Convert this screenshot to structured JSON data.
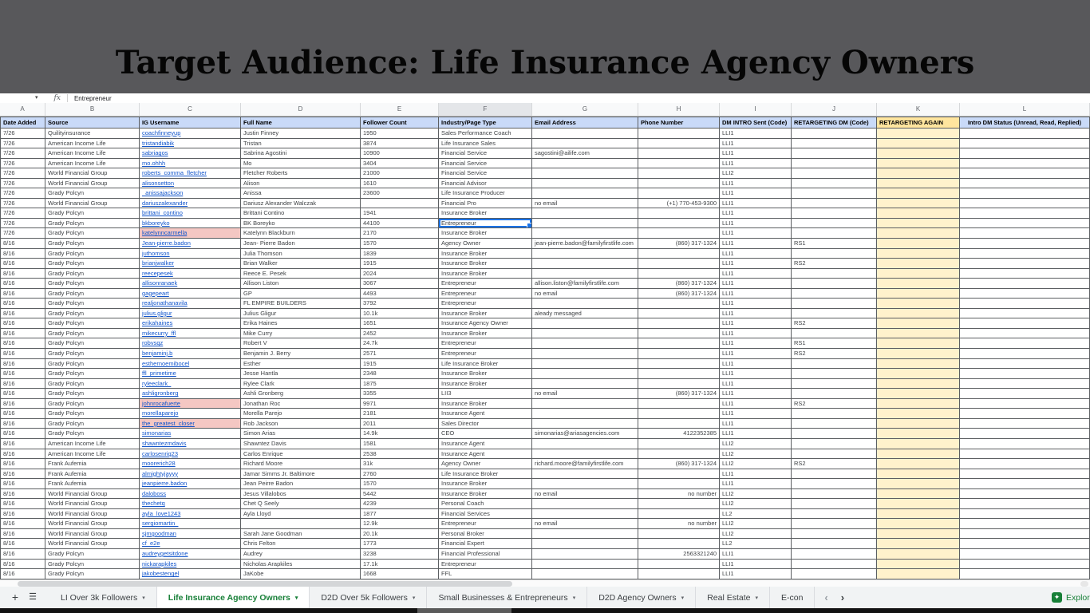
{
  "overlay": {
    "title": "Target Audience: Life Insurance Agency Owners"
  },
  "formula_bar": {
    "fx": "fx",
    "value": "Entrepreneur"
  },
  "colors": {
    "overlay_gray": "#58585b",
    "header_fill": "#c9daf8",
    "retargeting_header_fill": "#ffe59e",
    "retargeting_column_fill": "#fff2cc",
    "highlight_pink": "#f4c7c3",
    "link_blue": "#1155cc",
    "selection_blue": "#1a73e8",
    "active_tab_green": "#188038"
  },
  "sheet": {
    "column_letters": [
      "A",
      "B",
      "C",
      "D",
      "E",
      "F",
      "G",
      "H",
      "I",
      "J",
      "K",
      "L"
    ],
    "active_column": "F",
    "headers": [
      "Date Added",
      "Source",
      "IG Username",
      "Full Name",
      "Follower Count",
      "Industry/Page Type",
      "Email Address",
      "Phone Number",
      "DM INTRO Sent (Code)",
      "RETARGETING DM (Code)",
      "RETARGETING AGAIN",
      "Intro DM Status (Unread, Read, Replied)"
    ],
    "selected": {
      "row_index": 9,
      "column": "F",
      "value": "Entrepreneur"
    },
    "rows": [
      {
        "date": "7/26",
        "source": "Quilityinsurance",
        "user": "coachfinneyup",
        "name": "Justin Finney",
        "fol": "1950",
        "ind": "Sales Performance Coach",
        "email": "",
        "phone": "",
        "intro": "LLI1",
        "rt": ""
      },
      {
        "date": "7/26",
        "source": "American Income Life",
        "user": "tristandiabik",
        "name": "Tristan",
        "fol": "3874",
        "ind": "Life Insurance Sales",
        "email": "",
        "phone": "",
        "intro": "LLI1",
        "rt": ""
      },
      {
        "date": "7/26",
        "source": "American Income Life",
        "user": "sabriagos",
        "name": "Sabrina Agostini",
        "fol": "10900",
        "ind": "Financial Service",
        "email": "sagostini@ailife.com",
        "phone": "",
        "intro": "LLI1",
        "rt": ""
      },
      {
        "date": "7/26",
        "source": "American Income Life",
        "user": "mo.ohhh",
        "name": "Mo",
        "fol": "3404",
        "ind": "Financial Service",
        "email": "",
        "phone": "",
        "intro": "LLI1",
        "rt": ""
      },
      {
        "date": "7/26",
        "source": "World Financial Group",
        "user": "roberts_comma_fletcher",
        "name": "Fletcher Roberts",
        "fol": "21000",
        "ind": "Financial Service",
        "email": "",
        "phone": "",
        "intro": "LLI2",
        "rt": ""
      },
      {
        "date": "7/26",
        "source": "World Financial Group",
        "user": "alisonsetton",
        "name": "Alison",
        "fol": "1610",
        "ind": "Financial Advisor",
        "email": "",
        "phone": "",
        "intro": "LLI1",
        "rt": ""
      },
      {
        "date": "7/26",
        "source": "Grady Polcyn",
        "user": "_anissajackson",
        "name": "Anissa",
        "fol": "23600",
        "ind": "Life Insurance Producer",
        "email": "",
        "phone": "",
        "intro": "LLI1",
        "rt": ""
      },
      {
        "date": "7/26",
        "source": "World Financial Group",
        "user": "dariuszalexander",
        "name": "Dariusz Alexander Walczak",
        "fol": "",
        "ind": "Financial Pro",
        "email": "no email",
        "phone": "(+1) 770-453-9300",
        "intro": "LLI1",
        "rt": ""
      },
      {
        "date": "7/26",
        "source": "Grady Polcyn",
        "user": "brittani_contino",
        "name": "Brittani Contino",
        "fol": "1941",
        "ind": "Insurance Broker",
        "email": "",
        "phone": "",
        "intro": "LLI1",
        "rt": ""
      },
      {
        "date": "7/26",
        "source": "Grady Polcyn",
        "user": "bkboreyko",
        "name": "BK Boreyko",
        "fol": "44100",
        "ind": "Entrepreneur",
        "email": "",
        "phone": "",
        "intro": "LLI1",
        "rt": ""
      },
      {
        "date": "7/26",
        "source": "Grady Polcyn",
        "user": "katelynncarmella",
        "name": "Katelynn Blackburn",
        "fol": "2170",
        "ind": "Insurance Broker",
        "email": "",
        "phone": "",
        "intro": "LLI1",
        "rt": "",
        "pink": true
      },
      {
        "date": "8/16",
        "source": "Grady Polcyn",
        "user": "Jean-pierre.badon",
        "name": "Jean- Pierre Badon",
        "fol": "1570",
        "ind": "Agency Owner",
        "email": "jean-pierre.badon@familyfirstlife.com",
        "phone": "(860) 317-1324",
        "intro": "LLI1",
        "rt": "RS1"
      },
      {
        "date": "8/16",
        "source": "Grady Polcyn",
        "user": "juthomson",
        "name": "Julia Thomson",
        "fol": "1839",
        "ind": "Insurance Broker",
        "email": "",
        "phone": "",
        "intro": "LLI1",
        "rt": ""
      },
      {
        "date": "8/16",
        "source": "Grady Polcyn",
        "user": "brianjwalker",
        "name": "Brian Walker",
        "fol": "1915",
        "ind": "Insurance Broker",
        "email": "",
        "phone": "",
        "intro": "LLI1",
        "rt": "RS2"
      },
      {
        "date": "8/16",
        "source": "Grady Polcyn",
        "user": "reecepesek",
        "name": "Reece E. Pesek",
        "fol": "2024",
        "ind": "Insurance Broker",
        "email": "",
        "phone": "",
        "intro": "LLI1",
        "rt": ""
      },
      {
        "date": "8/16",
        "source": "Grady Polcyn",
        "user": "allisonranaek",
        "name": "Allison Liston",
        "fol": "3067",
        "ind": "Entrepreneur",
        "email": "allison.liston@familyfirstlife.com",
        "phone": "(860) 317-1324",
        "intro": "LLI1",
        "rt": ""
      },
      {
        "date": "8/16",
        "source": "Grady Polcyn",
        "user": "gagepeart",
        "name": "GP",
        "fol": "4493",
        "ind": "Entrepreneur",
        "email": "no email",
        "phone": "(860) 317-1324",
        "intro": "LLI1",
        "rt": ""
      },
      {
        "date": "8/16",
        "source": "Grady Polcyn",
        "user": "realjonathanavila",
        "name": "FL EMPIRE BUILDERS",
        "fol": "3792",
        "ind": "Entrepreneur",
        "email": "",
        "phone": "",
        "intro": "LLI1",
        "rt": ""
      },
      {
        "date": "8/16",
        "source": "Grady Polcyn",
        "user": "julius.gligur",
        "name": "Julius Gligur",
        "fol": "10.1k",
        "ind": "Insurance Broker",
        "email": "aleady messaged",
        "phone": "",
        "intro": "LLI1",
        "rt": ""
      },
      {
        "date": "8/16",
        "source": "Grady Polcyn",
        "user": "erikahaines",
        "name": "Erika Haines",
        "fol": "1651",
        "ind": "Insurance Agency Owner",
        "email": "",
        "phone": "",
        "intro": "LLI1",
        "rt": "RS2"
      },
      {
        "date": "8/16",
        "source": "Grady Polcyn",
        "user": "mikecurry_ffl",
        "name": "Mike Curry",
        "fol": "2452",
        "ind": "Insurance Broker",
        "email": "",
        "phone": "",
        "intro": "LLI1",
        "rt": ""
      },
      {
        "date": "8/16",
        "source": "Grady Polcyn",
        "user": "robvsqz",
        "name": "Robert V",
        "fol": "24.7k",
        "ind": "Entrepreneur",
        "email": "",
        "phone": "",
        "intro": "LLI1",
        "rt": "RS1"
      },
      {
        "date": "8/16",
        "source": "Grady Polcyn",
        "user": "benjaminj.b",
        "name": "Benjamin J. Berry",
        "fol": "2571",
        "ind": "Entrepreneur",
        "email": "",
        "phone": "",
        "intro": "LLI1",
        "rt": "RS2"
      },
      {
        "date": "8/16",
        "source": "Grady Polcyn",
        "user": "esthernoemibocel",
        "name": "Esther",
        "fol": "1915",
        "ind": "Life Insurance Broker",
        "email": "",
        "phone": "",
        "intro": "LLI1",
        "rt": ""
      },
      {
        "date": "8/16",
        "source": "Grady Polcyn",
        "user": "ffl_primetime",
        "name": "Jesse Hantla",
        "fol": "2348",
        "ind": "Insurance Broker",
        "email": "",
        "phone": "",
        "intro": "LLI1",
        "rt": ""
      },
      {
        "date": "8/16",
        "source": "Grady Polcyn",
        "user": "ryleeclark_",
        "name": "Rylee Clark",
        "fol": "1875",
        "ind": "Insurance Broker",
        "email": "",
        "phone": "",
        "intro": "LLI1",
        "rt": ""
      },
      {
        "date": "8/16",
        "source": "Grady Polcyn",
        "user": "ashligronberg",
        "name": "Ashli Gronberg",
        "fol": "3355",
        "ind": "LII3",
        "email": "no email",
        "phone": "(860) 317-1324",
        "intro": "LLI1",
        "rt": ""
      },
      {
        "date": "8/16",
        "source": "Grady Polcyn",
        "user": "johnrocafuerte",
        "name": "Jonathan Roc",
        "fol": "9971",
        "ind": "Insurance Broker",
        "email": "",
        "phone": "",
        "intro": "LLI1",
        "rt": "RS2",
        "pink": true
      },
      {
        "date": "8/16",
        "source": "Grady Polcyn",
        "user": "morellaparejo",
        "name": "Morella Parejo",
        "fol": "2181",
        "ind": "Insurance Agent",
        "email": "",
        "phone": "",
        "intro": "LLI1",
        "rt": ""
      },
      {
        "date": "8/16",
        "source": "Grady Polcyn",
        "user": "the_greatest_closer",
        "name": "Rob Jackson",
        "fol": "2011",
        "ind": "Sales Director",
        "email": "",
        "phone": "",
        "intro": "LLI1",
        "rt": "",
        "pink": true
      },
      {
        "date": "8/16",
        "source": "Grady Polcyn",
        "user": "simonarias",
        "name": "Simon Arias",
        "fol": "14.9k",
        "ind": "CEO",
        "email": "simonarias@ariasagencies.com",
        "phone": "4122352385",
        "intro": "LLI1",
        "rt": ""
      },
      {
        "date": "8/16",
        "source": "American Income Life",
        "user": "shawntezmdavis",
        "name": "Shawntez Davis",
        "fol": "1581",
        "ind": "Insurance Agent",
        "email": "",
        "phone": "",
        "intro": "LLI2",
        "rt": ""
      },
      {
        "date": "8/16",
        "source": "American Income Life",
        "user": "carlosenriq23",
        "name": "Carlos Enrique",
        "fol": "2538",
        "ind": "Insurance Agent",
        "email": "",
        "phone": "",
        "intro": "LLI2",
        "rt": ""
      },
      {
        "date": "8/16",
        "source": "Frank Aufemia",
        "user": "moorerich28",
        "name": "Richard Moore",
        "fol": "31k",
        "ind": "Agency Owner",
        "email": "richard.moore@familyfirstlife.com",
        "phone": "(860) 317-1324",
        "intro": "LLI2",
        "rt": "RS2"
      },
      {
        "date": "8/16",
        "source": "Frank Aufemia",
        "user": "almightyjayyy",
        "name": "Jamar Simms Jr. Baltimore",
        "fol": "2760",
        "ind": "Life Insurance Broker",
        "email": "",
        "phone": "",
        "intro": "LLI1",
        "rt": ""
      },
      {
        "date": "8/16",
        "source": "Frank Aufemia",
        "user": "jeanpierre.badon",
        "name": "Jean Peirre Badon",
        "fol": "1570",
        "ind": "Insurance Broker",
        "email": "",
        "phone": "",
        "intro": "LLI1",
        "rt": ""
      },
      {
        "date": "8/16",
        "source": "World Financial Group",
        "user": "daloboss",
        "name": "Jesus Villalobos",
        "fol": "5442",
        "ind": "Insurance Broker",
        "email": "no email",
        "phone": "no number",
        "intro": "LLI2",
        "rt": ""
      },
      {
        "date": "8/16",
        "source": "World Financial Group",
        "user": "thechetq",
        "name": "Chet Q Seely",
        "fol": "4239",
        "ind": "Personal Coach",
        "email": "",
        "phone": "",
        "intro": "LLI2",
        "rt": ""
      },
      {
        "date": "8/16",
        "source": "World Financial Group",
        "user": "ayla_love1243",
        "name": "Ayla Lloyd",
        "fol": "1877",
        "ind": "Financial Services",
        "email": "",
        "phone": "",
        "intro": "LL2",
        "rt": ""
      },
      {
        "date": "8/16",
        "source": "World Financial Group",
        "user": "sergiomartin_",
        "name": "",
        "fol": "12.9k",
        "ind": "Entrepreneur",
        "email": "no email",
        "phone": "no number",
        "intro": "LLI2",
        "rt": ""
      },
      {
        "date": "8/16",
        "source": "World Financial Group",
        "user": "sjmgoodman",
        "name": "Sarah Jane Goodman",
        "fol": "20.1k",
        "ind": "Personal Broker",
        "email": "",
        "phone": "",
        "intro": "LLI2",
        "rt": ""
      },
      {
        "date": "8/16",
        "source": "World Financial Group",
        "user": "cf_e2e",
        "name": "Chris Felton",
        "fol": "1773",
        "ind": "Financial Expert",
        "email": "",
        "phone": "",
        "intro": "LL2",
        "rt": ""
      },
      {
        "date": "8/16",
        "source": "Grady Polcyn",
        "user": "audreygetsitdone",
        "name": "Audrey",
        "fol": "3238",
        "ind": "Financial Professional",
        "email": "",
        "phone": "2563321240",
        "intro": "LLI1",
        "rt": ""
      },
      {
        "date": "8/16",
        "source": "Grady Polcyn",
        "user": "nickarapkiles",
        "name": "Nicholas Arapkiles",
        "fol": "17.1k",
        "ind": "Entrepreneur",
        "email": "",
        "phone": "",
        "intro": "LLI1",
        "rt": ""
      },
      {
        "date": "8/16",
        "source": "Grady Polcyn",
        "user": "jakobestengel",
        "name": "JaKobe",
        "fol": "1668",
        "ind": "FFL",
        "email": "",
        "phone": "",
        "intro": "LLI1",
        "rt": ""
      }
    ]
  },
  "tabbar": {
    "add_label": "+",
    "tabs": [
      {
        "label": "LI Over 3k Followers",
        "active": false
      },
      {
        "label": "Life Insurance Agency Owners",
        "active": true
      },
      {
        "label": "D2D Over 5k Followers",
        "active": false
      },
      {
        "label": "Small Businesses & Entrepreneurs",
        "active": false
      },
      {
        "label": "D2D Agency Owners",
        "active": false
      },
      {
        "label": "Real Estate",
        "active": false
      },
      {
        "label": "E-con",
        "active": false,
        "arrow": false
      }
    ],
    "explore_label": "Explore"
  }
}
